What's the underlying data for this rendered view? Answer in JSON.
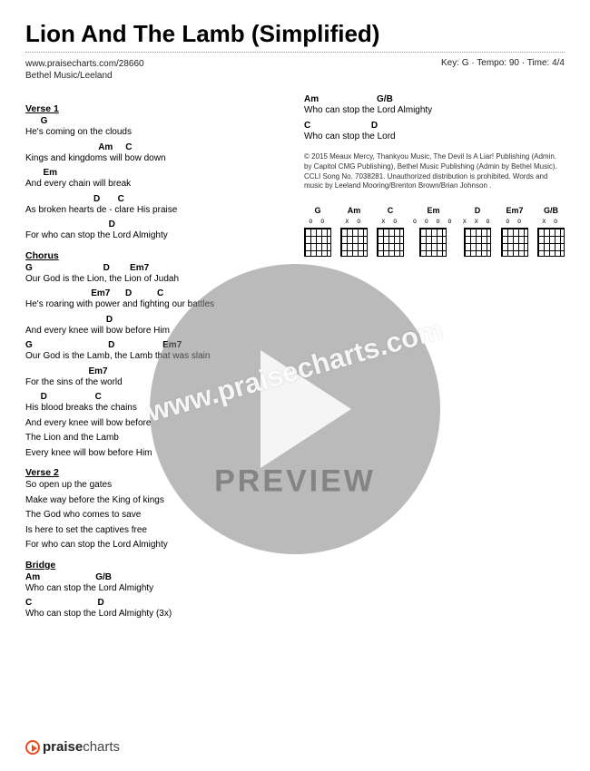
{
  "header": {
    "title": "Lion And The Lamb (Simplified)",
    "url": "www.praisecharts.com/28660",
    "artist": "Bethel Music/Leeland",
    "meta": "Key: G · Tempo: 90 · Time: 4/4"
  },
  "sections": [
    {
      "heading": "Verse 1",
      "col": "left",
      "lines": [
        {
          "chords": "      G",
          "lyrics": "He's coming on the clouds"
        },
        {
          "chords": "                             Am     C",
          "lyrics": "Kings and kingdoms will bow down"
        },
        {
          "chords": "       Em",
          "lyrics": "And every chain will break"
        },
        {
          "chords": "                           D       C",
          "lyrics": "As broken hearts de - clare His praise"
        },
        {
          "chords": "                                 D",
          "lyrics": "For who can stop the Lord Almighty"
        }
      ]
    },
    {
      "heading": "Chorus",
      "col": "left",
      "lines": [
        {
          "chords": "G                            D        Em7",
          "lyrics": "  Our God is the Lion, the Lion of Judah"
        },
        {
          "chords": "                          Em7      D          C",
          "lyrics": "He's roaring with power and fighting our battles"
        },
        {
          "chords": "                                D",
          "lyrics": "And every knee will bow before Him"
        },
        {
          "chords": "G                              D                   Em7",
          "lyrics": "  Our God is the Lamb, the Lamb that was slain"
        },
        {
          "chords": "                         Em7",
          "lyrics": "For the sins of the world"
        },
        {
          "chords": "      D                   C",
          "lyrics": "His blood breaks the chains"
        },
        {
          "chords": "",
          "lyrics": "And every knee will bow before"
        },
        {
          "chords": "",
          "lyrics": "The Lion and the Lamb"
        },
        {
          "chords": "",
          "lyrics": "Every knee will bow before Him"
        }
      ]
    },
    {
      "heading": "Verse 2",
      "col": "left",
      "lines": [
        {
          "chords": "",
          "lyrics": "So open up the gates"
        },
        {
          "chords": "",
          "lyrics": "Make way before the King of kings"
        },
        {
          "chords": "",
          "lyrics": "The God who comes to save"
        },
        {
          "chords": "",
          "lyrics": "Is here to set the captives free"
        },
        {
          "chords": "",
          "lyrics": "For who can stop the Lord Almighty"
        }
      ]
    },
    {
      "heading": "Bridge",
      "col": "left",
      "lines": [
        {
          "chords": "Am                      G/B",
          "lyrics": "     Who can stop the Lord Almighty"
        },
        {
          "chords": "C                          D",
          "lyrics": "   Who can stop the Lord Almighty (3x)"
        }
      ]
    }
  ],
  "rightLines": [
    {
      "chords": "Am                       G/B",
      "lyrics": "     Who can stop the Lord Almighty"
    },
    {
      "chords": "C                        D",
      "lyrics": "     Who can stop the Lord"
    }
  ],
  "copyright": "© 2015 Meaux Mercy, Thankyou Music, The Devil Is A Liar! Publishing (Admin. by Capitol CMG Publishing), Bethel Music Publishing (Admin by Bethel Music). CCLI Song No. 7038281. Unauthorized distribution is prohibited. Words and music by Leeland Mooring/Brenton Brown/Brian Johnson .",
  "chordDiagrams": [
    {
      "name": "G",
      "fingering": "O O"
    },
    {
      "name": "Am",
      "fingering": "X O"
    },
    {
      "name": "C",
      "fingering": "X   O"
    },
    {
      "name": "Em",
      "fingering": "O   O O O"
    },
    {
      "name": "D",
      "fingering": "X X O"
    },
    {
      "name": "Em7",
      "fingering": "O   O"
    },
    {
      "name": "G/B",
      "fingering": "X   O"
    }
  ],
  "watermark": {
    "url": "www.praisecharts.com",
    "label": "PREVIEW"
  },
  "footer": {
    "bold": "praise",
    "light": "charts"
  },
  "colors": {
    "accent": "#ed4a1f",
    "text": "#222",
    "wm": "rgba(130,130,130,0.55)"
  }
}
